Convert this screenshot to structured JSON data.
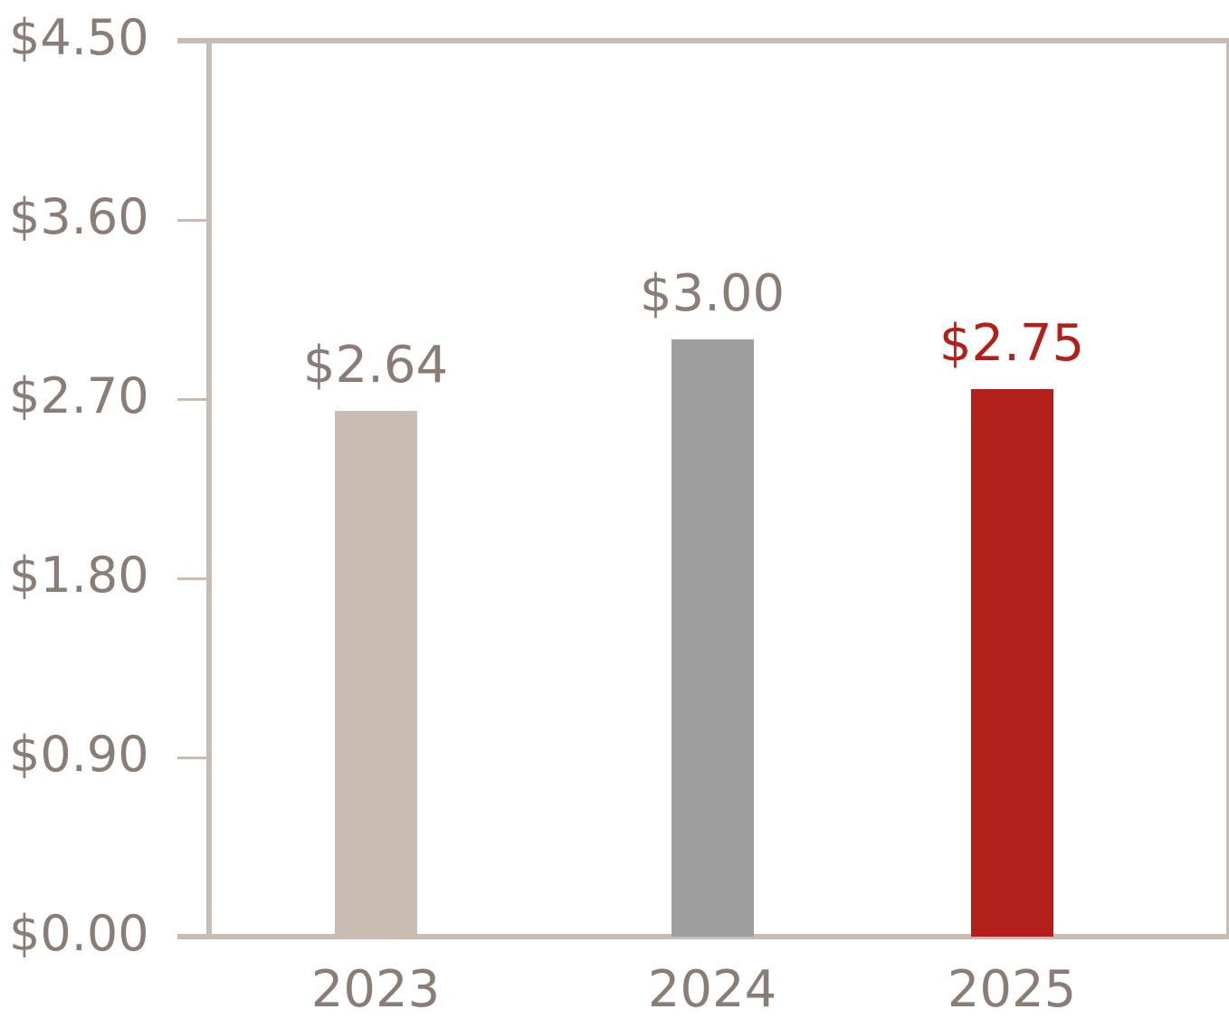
{
  "chart_data": {
    "type": "bar",
    "title": "",
    "xlabel": "",
    "ylabel": "",
    "categories": [
      "2023",
      "2024",
      "2025"
    ],
    "values": [
      2.64,
      3.0,
      2.75
    ],
    "value_labels": [
      "$2.64",
      "$3.00",
      "$2.75"
    ],
    "bar_colors": [
      "#c9bcb3",
      "#9e9e9e",
      "#b3201b"
    ],
    "value_label_colors": [
      "#8a7d76",
      "#8a7d76",
      "#b3201b"
    ],
    "ylim": [
      0,
      4.5
    ],
    "y_ticks": [
      0,
      0.9,
      1.8,
      2.7,
      3.6,
      4.5
    ],
    "y_tick_labels": [
      "$0.00",
      "$0.90",
      "$1.80",
      "$2.70",
      "$3.60",
      "$4.50"
    ],
    "grid": false,
    "legend": null
  },
  "colors": {
    "axis": "#c9bcb3",
    "text": "#8a7d76",
    "highlight": "#b3201b"
  }
}
